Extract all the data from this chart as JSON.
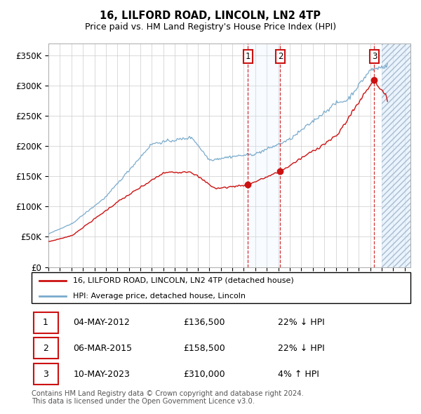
{
  "title": "16, LILFORD ROAD, LINCOLN, LN2 4TP",
  "subtitle": "Price paid vs. HM Land Registry's House Price Index (HPI)",
  "ylabel_ticks": [
    "£0",
    "£50K",
    "£100K",
    "£150K",
    "£200K",
    "£250K",
    "£300K",
    "£350K"
  ],
  "ytick_values": [
    0,
    50000,
    100000,
    150000,
    200000,
    250000,
    300000,
    350000
  ],
  "ylim": [
    0,
    370000
  ],
  "xlim_start": 1995.0,
  "xlim_end": 2026.5,
  "hpi_color": "#7aabcc",
  "price_color": "#cc1111",
  "legend_label_price": "16, LILFORD ROAD, LINCOLN, LN2 4TP (detached house)",
  "legend_label_hpi": "HPI: Average price, detached house, Lincoln",
  "transactions": [
    {
      "num": 1,
      "date": "04-MAY-2012",
      "price": 136500,
      "pct": "22%",
      "dir": "↓",
      "year": 2012.35
    },
    {
      "num": 2,
      "date": "06-MAR-2015",
      "price": 158500,
      "pct": "22%",
      "dir": "↓",
      "year": 2015.17
    },
    {
      "num": 3,
      "date": "10-MAY-2023",
      "price": 310000,
      "pct": "4%",
      "dir": "↑",
      "year": 2023.35
    }
  ],
  "footnote": "Contains HM Land Registry data © Crown copyright and database right 2024.\nThis data is licensed under the Open Government Licence v3.0.",
  "hatch_color": "#ddeeff",
  "grid_color": "#cccccc",
  "span_color": "#ddeeff"
}
